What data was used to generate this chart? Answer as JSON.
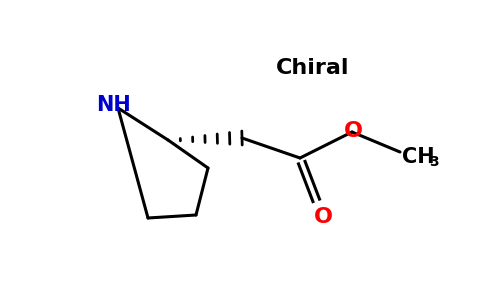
{
  "background_color": "#ffffff",
  "bond_color": "#000000",
  "N_color": "#0000cc",
  "O_color": "#ff0000",
  "line_width": 2.2,
  "NH_label": "NH",
  "O_label": "O",
  "CH3_label": "CH",
  "CH3_sub": "3",
  "chiral_label": "Chiral",
  "NH_fontsize": 15,
  "O_fontsize": 16,
  "CH3_fontsize": 15,
  "chiral_fontsize": 16
}
